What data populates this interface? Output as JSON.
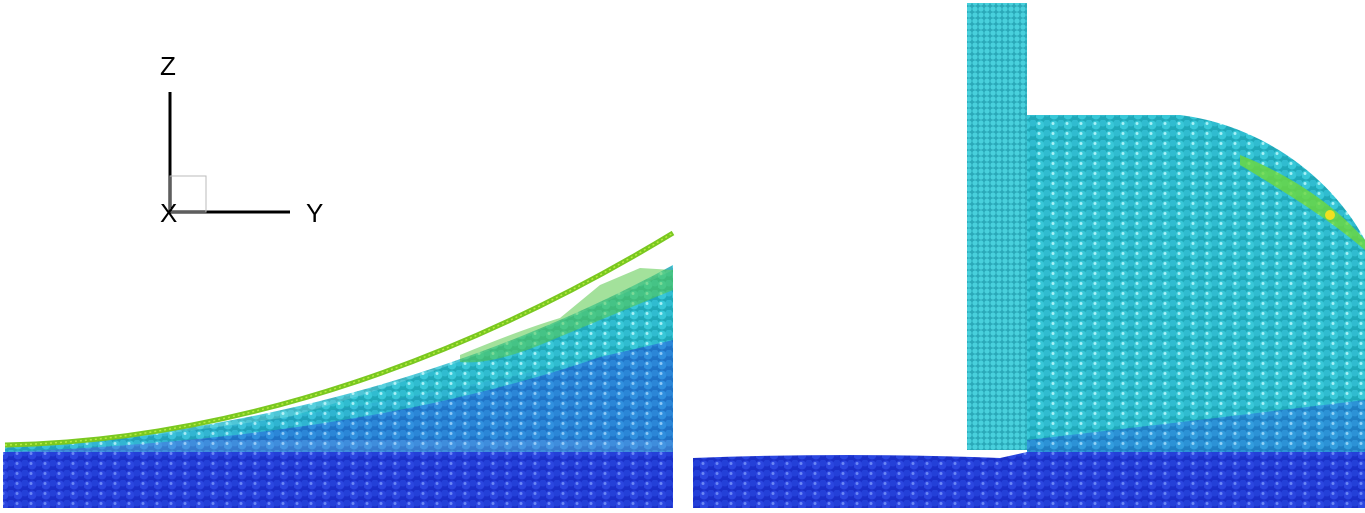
{
  "axes_triad": {
    "z_label": "Z",
    "x_label": "X",
    "y_label": "Y"
  },
  "colors": {
    "bed_dark_blue": "#1a2ed0",
    "mid_blue": "#2a7ee0",
    "cyan": "#30c8d8",
    "green": "#6ed83a",
    "yellow_green": "#a8d820",
    "column": "#3fc9d6"
  },
  "panels": [
    {
      "name": "left",
      "description_visible": false
    },
    {
      "name": "right",
      "description_visible": false
    }
  ]
}
